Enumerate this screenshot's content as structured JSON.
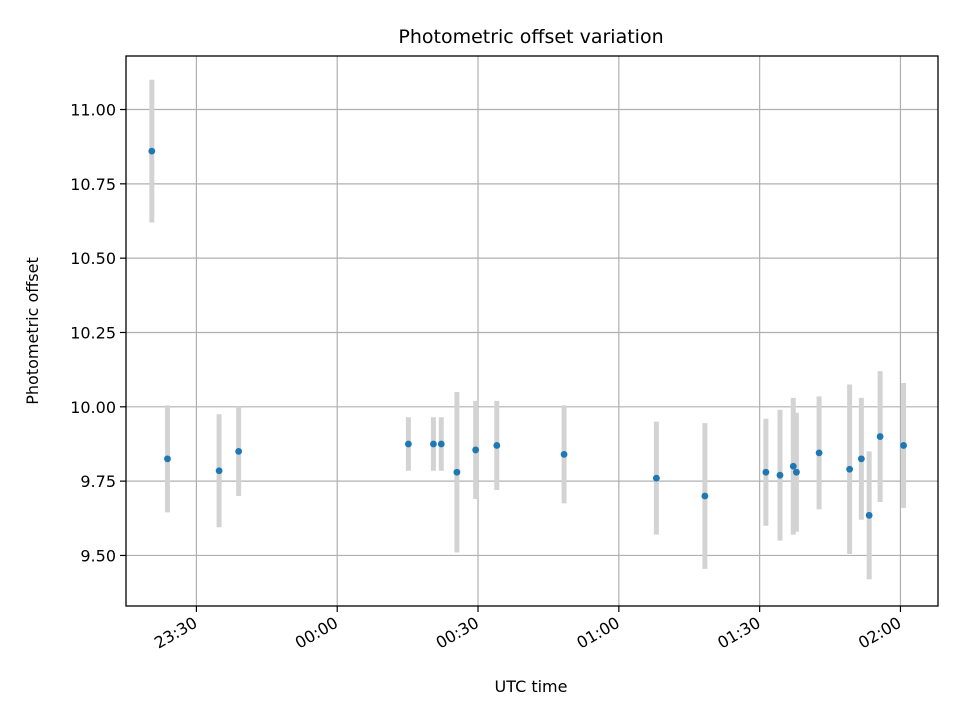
{
  "chart_data": {
    "type": "scatter",
    "title": "Photometric offset variation",
    "xlabel": "UTC time",
    "ylabel": "Photometric offset",
    "x_axis": "time",
    "xlim": [
      "23:15",
      "02:08"
    ],
    "ylim": [
      9.33,
      11.18
    ],
    "grid": true,
    "xticks": [
      "23:30",
      "00:00",
      "00:30",
      "01:00",
      "01:30",
      "02:00"
    ],
    "yticks": [
      "9.50",
      "9.75",
      "10.00",
      "10.25",
      "10.50",
      "10.75",
      "11.00"
    ],
    "colors": {
      "marker": "#1f77b4",
      "errorbar": "#d3d3d3",
      "grid": "#b0b0b0"
    },
    "points": [
      {
        "x": "23:20:30",
        "y": 10.86,
        "err": 0.24
      },
      {
        "x": "23:23:50",
        "y": 9.825,
        "err": 0.18
      },
      {
        "x": "23:34:50",
        "y": 9.785,
        "err": 0.19
      },
      {
        "x": "23:39:00",
        "y": 9.85,
        "err": 0.15
      },
      {
        "x": "00:15:10",
        "y": 9.875,
        "err": 0.09
      },
      {
        "x": "00:20:30",
        "y": 9.875,
        "err": 0.09
      },
      {
        "x": "00:22:10",
        "y": 9.875,
        "err": 0.09
      },
      {
        "x": "00:25:30",
        "y": 9.78,
        "err": 0.27
      },
      {
        "x": "00:29:30",
        "y": 9.855,
        "err": 0.165
      },
      {
        "x": "00:34:00",
        "y": 9.87,
        "err": 0.15
      },
      {
        "x": "00:48:20",
        "y": 9.84,
        "err": 0.165
      },
      {
        "x": "01:08:00",
        "y": 9.76,
        "err": 0.19
      },
      {
        "x": "01:18:20",
        "y": 9.7,
        "err": 0.245
      },
      {
        "x": "01:31:20",
        "y": 9.78,
        "err": 0.18
      },
      {
        "x": "01:34:20",
        "y": 9.77,
        "err": 0.22
      },
      {
        "x": "01:37:10",
        "y": 9.8,
        "err": 0.23
      },
      {
        "x": "01:37:50",
        "y": 9.78,
        "err": 0.2
      },
      {
        "x": "01:42:40",
        "y": 9.845,
        "err": 0.19
      },
      {
        "x": "01:49:10",
        "y": 9.79,
        "err": 0.285
      },
      {
        "x": "01:51:40",
        "y": 9.825,
        "err": 0.205
      },
      {
        "x": "01:53:20",
        "y": 9.635,
        "err": 0.215
      },
      {
        "x": "01:55:40",
        "y": 9.9,
        "err": 0.22
      },
      {
        "x": "02:00:40",
        "y": 9.87,
        "err": 0.21
      }
    ]
  }
}
